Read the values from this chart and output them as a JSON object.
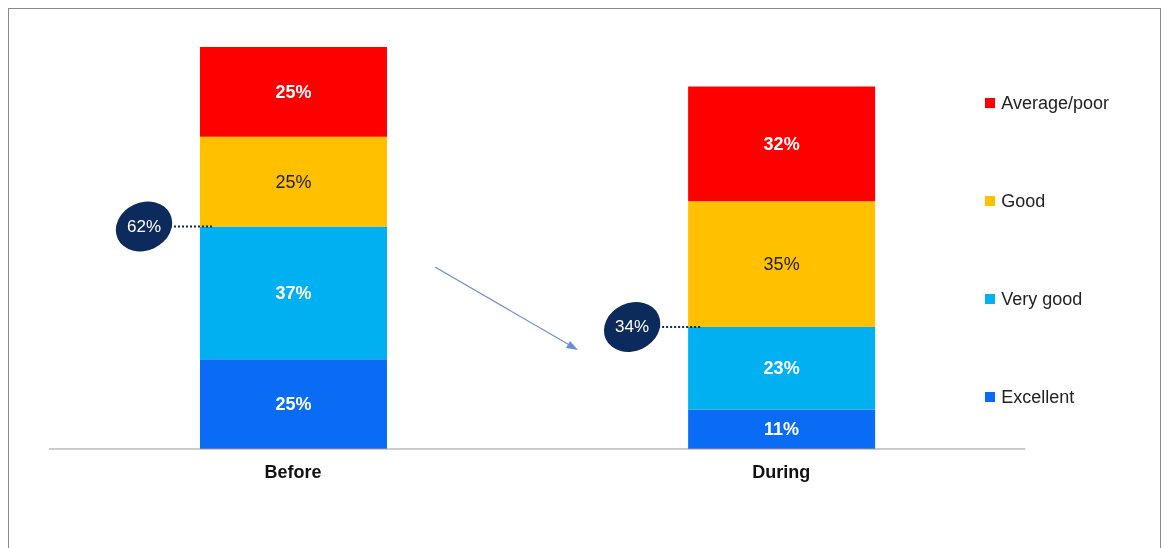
{
  "chart_data": {
    "type": "bar",
    "stacked": true,
    "categories": [
      "Before",
      "During"
    ],
    "series": [
      {
        "name": "Excellent",
        "color": "#0a6cf5",
        "values": [
          25,
          11
        ],
        "value_labels": [
          "25%",
          "11%"
        ]
      },
      {
        "name": "Very good",
        "color": "#00b0f0",
        "values": [
          37,
          23
        ],
        "value_labels": [
          "37%",
          "23%"
        ]
      },
      {
        "name": "Good",
        "color": "#ffc000",
        "values": [
          25,
          35
        ],
        "value_labels": [
          "25%",
          "35%"
        ]
      },
      {
        "name": "Average/poor",
        "color": "#ff0000",
        "values": [
          25,
          32
        ],
        "value_labels": [
          "25%",
          "32%"
        ]
      }
    ],
    "annotations": [
      "62%",
      "34%"
    ],
    "legend": "right"
  }
}
